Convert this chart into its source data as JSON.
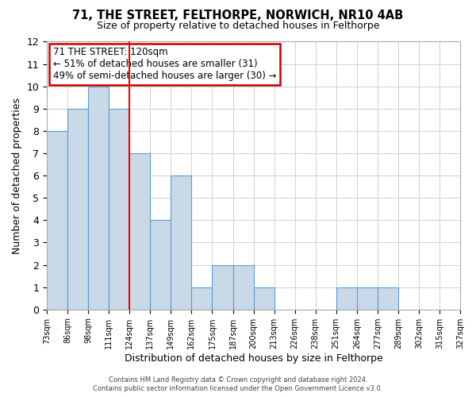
{
  "title": "71, THE STREET, FELTHORPE, NORWICH, NR10 4AB",
  "subtitle": "Size of property relative to detached houses in Felthorpe",
  "xlabel": "Distribution of detached houses by size in Felthorpe",
  "ylabel": "Number of detached properties",
  "bin_edges": [
    0,
    1,
    2,
    3,
    4,
    5,
    6,
    7,
    8,
    9,
    10,
    11,
    12,
    13,
    14,
    15,
    16,
    17,
    18,
    19,
    20
  ],
  "bin_labels": [
    "73sqm",
    "86sqm",
    "98sqm",
    "111sqm",
    "124sqm",
    "137sqm",
    "149sqm",
    "162sqm",
    "175sqm",
    "187sqm",
    "200sqm",
    "213sqm",
    "226sqm",
    "238sqm",
    "251sqm",
    "264sqm",
    "277sqm",
    "289sqm",
    "302sqm",
    "315sqm",
    "327sqm"
  ],
  "bar_heights": [
    8,
    9,
    10,
    9,
    7,
    4,
    6,
    1,
    2,
    2,
    1,
    0,
    0,
    0,
    1,
    1,
    1,
    0,
    0,
    0
  ],
  "bar_color": "#c9d9e8",
  "bar_edge_color": "#5b9bd5",
  "red_line_x": 4.0,
  "annotation_title": "71 THE STREET: 120sqm",
  "annotation_line1": "← 51% of detached houses are smaller (31)",
  "annotation_line2": "49% of semi-detached houses are larger (30) →",
  "annotation_box_color": "#ffffff",
  "annotation_box_edge": "#cc0000",
  "footer1": "Contains HM Land Registry data © Crown copyright and database right 2024.",
  "footer2": "Contains public sector information licensed under the Open Government Licence v3.0.",
  "ylim": [
    0,
    12
  ],
  "yticks": [
    0,
    1,
    2,
    3,
    4,
    5,
    6,
    7,
    8,
    9,
    10,
    11,
    12
  ],
  "background_color": "#ffffff",
  "grid_color": "#d0d0d0"
}
